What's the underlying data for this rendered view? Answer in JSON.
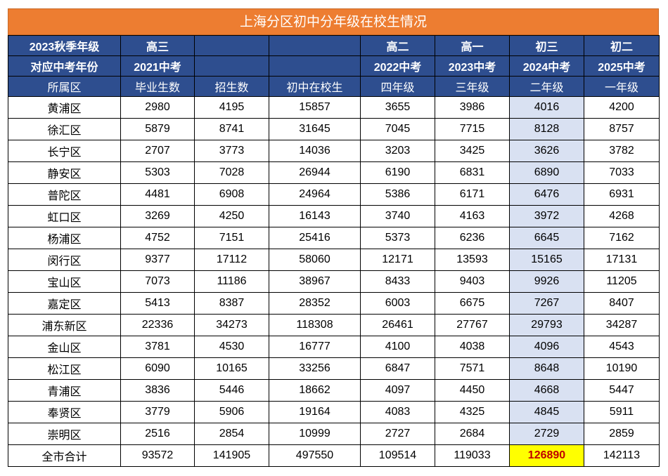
{
  "title": "上海分区初中分年级在校生情况",
  "header_row1": [
    "2023秋季年级",
    "高三",
    "",
    "",
    "高二",
    "高一",
    "初三",
    "初二"
  ],
  "header_row2": [
    "对应中考年份",
    "2021中考",
    "",
    "",
    "2022中考",
    "2023中考",
    "2024中考",
    "2025中考"
  ],
  "header_row3": [
    "所属区",
    "毕业生数",
    "招生数",
    "初中在校生",
    "四年级",
    "三年级",
    "二年级",
    "一年级"
  ],
  "rows": [
    [
      "黄浦区",
      "2980",
      "4195",
      "15857",
      "3655",
      "3986",
      "4016",
      "4200"
    ],
    [
      "徐汇区",
      "5879",
      "8741",
      "31645",
      "7045",
      "7715",
      "8128",
      "8757"
    ],
    [
      "长宁区",
      "2707",
      "3773",
      "14036",
      "3203",
      "3425",
      "3626",
      "3782"
    ],
    [
      "静安区",
      "5303",
      "7028",
      "26944",
      "6190",
      "6831",
      "6890",
      "7033"
    ],
    [
      "普陀区",
      "4481",
      "6908",
      "24964",
      "5386",
      "6171",
      "6476",
      "6931"
    ],
    [
      "虹口区",
      "3269",
      "4250",
      "16143",
      "3740",
      "4163",
      "3972",
      "4268"
    ],
    [
      "杨浦区",
      "4752",
      "7151",
      "25416",
      "5373",
      "6236",
      "6645",
      "7162"
    ],
    [
      "闵行区",
      "9377",
      "17112",
      "58060",
      "12171",
      "13593",
      "15165",
      "17131"
    ],
    [
      "宝山区",
      "7073",
      "11186",
      "38967",
      "8433",
      "9403",
      "9926",
      "11205"
    ],
    [
      "嘉定区",
      "5413",
      "8387",
      "28352",
      "6003",
      "6675",
      "7267",
      "8407"
    ],
    [
      "浦东新区",
      "22336",
      "34273",
      "118308",
      "26461",
      "27767",
      "29793",
      "34287"
    ],
    [
      "金山区",
      "3781",
      "4530",
      "16777",
      "4100",
      "4038",
      "4096",
      "4543"
    ],
    [
      "松江区",
      "6090",
      "10165",
      "33256",
      "6847",
      "7571",
      "8648",
      "10190"
    ],
    [
      "青浦区",
      "3836",
      "5446",
      "18662",
      "4097",
      "4450",
      "4668",
      "5447"
    ],
    [
      "奉贤区",
      "3779",
      "5906",
      "19164",
      "4083",
      "4325",
      "4845",
      "5911"
    ],
    [
      "崇明区",
      "2516",
      "2854",
      "10999",
      "2727",
      "2684",
      "2729",
      "2859"
    ]
  ],
  "total": [
    "全市合计",
    "93572",
    "141905",
    "497550",
    "109514",
    "119033",
    "126890",
    "142113"
  ],
  "colors": {
    "title_bg": "#ED7D31",
    "header_bg": "#2E4E8F",
    "highlight_col": "#D9E1F2",
    "total_highlight": "#FFFF00",
    "total_highlight_text": "#C00000"
  }
}
